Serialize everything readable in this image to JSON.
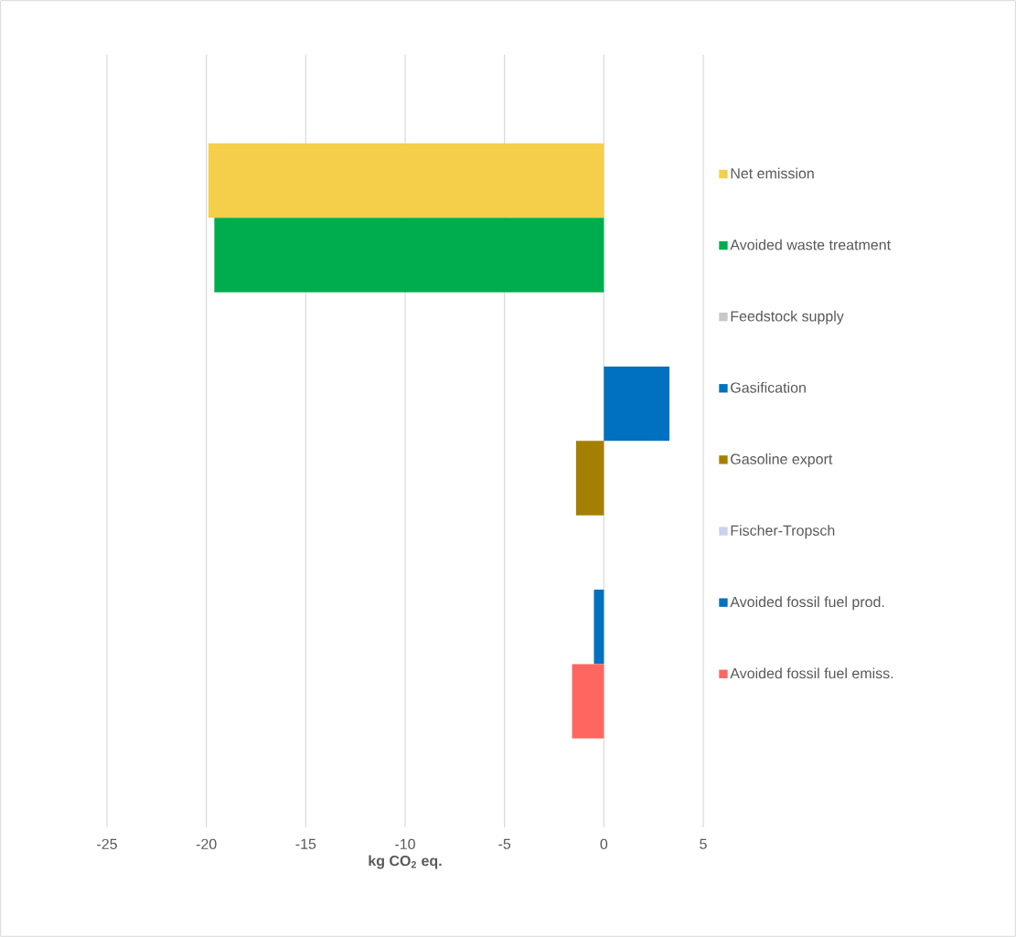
{
  "chart_data": {
    "type": "bar",
    "orientation": "horizontal",
    "xlabel": "kg CO$_{2}$ eq.",
    "categories": [
      null
    ],
    "series": [
      {
        "name": "Net emission",
        "color": "#f5cf4a",
        "values": [
          -19.9
        ]
      },
      {
        "name": "Avoided waste treatment",
        "color": "#00ad4e",
        "values": [
          -19.6
        ]
      },
      {
        "name": "Feedstock supply",
        "color": "#c8c8c8",
        "values": [
          0
        ]
      },
      {
        "name": "Gasification",
        "color": "#0070c0",
        "values": [
          3.3
        ]
      },
      {
        "name": "Gasoline export",
        "color": "#a57f00",
        "values": [
          -1.4
        ]
      },
      {
        "name": "Fischer-Tropsch",
        "color": "#c9d3f0",
        "values": [
          0
        ]
      },
      {
        "name": "Avoided fossil fuel prod.",
        "color": "#0070c0",
        "values": [
          -0.5
        ]
      },
      {
        "name": "Avoided fossil fuel emiss.",
        "color": "#ff6660",
        "values": [
          -1.6
        ]
      }
    ],
    "xlim": [
      -25,
      5
    ],
    "xticks": [
      -25,
      -20,
      -15,
      -10,
      -5,
      0,
      5
    ],
    "grid": "x",
    "legend": "right"
  }
}
